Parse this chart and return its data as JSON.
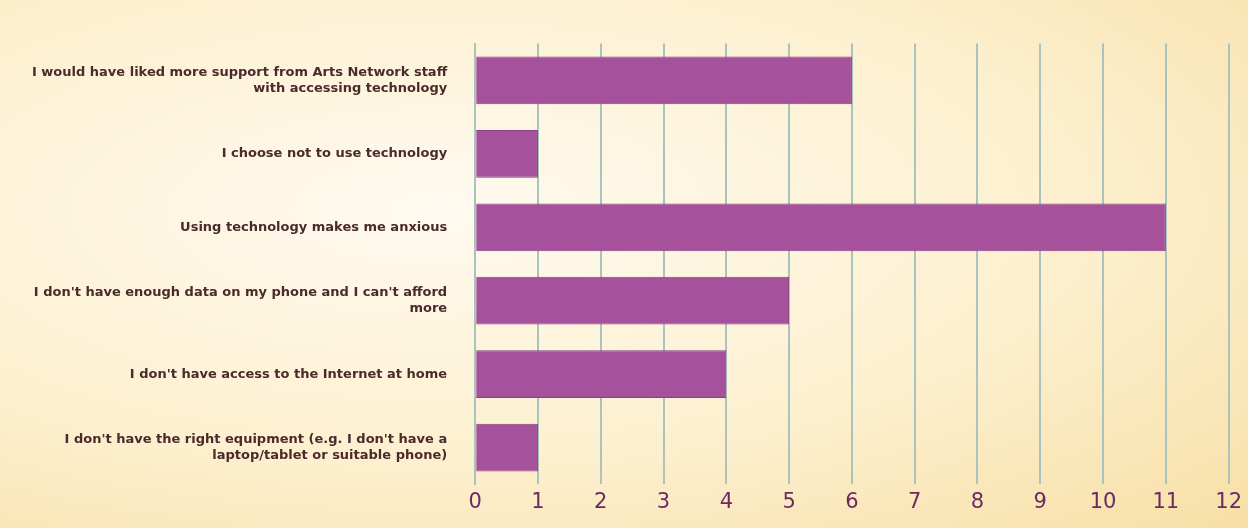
{
  "chart_data": {
    "type": "bar",
    "orientation": "horizontal",
    "categories": [
      "I would have liked more support from Arts Network staff with accessing technology",
      "I choose not to use technology",
      "Using technology makes me anxious",
      "I don't have enough data on my phone and I can't afford more",
      "I don't have access to the Internet at home",
      "I don't have the right equipment (e.g. I don't have a laptop/tablet or suitable phone)"
    ],
    "values": [
      6,
      1,
      11,
      5,
      4,
      1
    ],
    "color": "#a5519b",
    "xlim": [
      0,
      12
    ],
    "xticks": [
      0,
      1,
      2,
      3,
      4,
      5,
      6,
      7,
      8,
      9,
      10,
      11,
      12
    ],
    "grid": "x",
    "legend": false
  }
}
